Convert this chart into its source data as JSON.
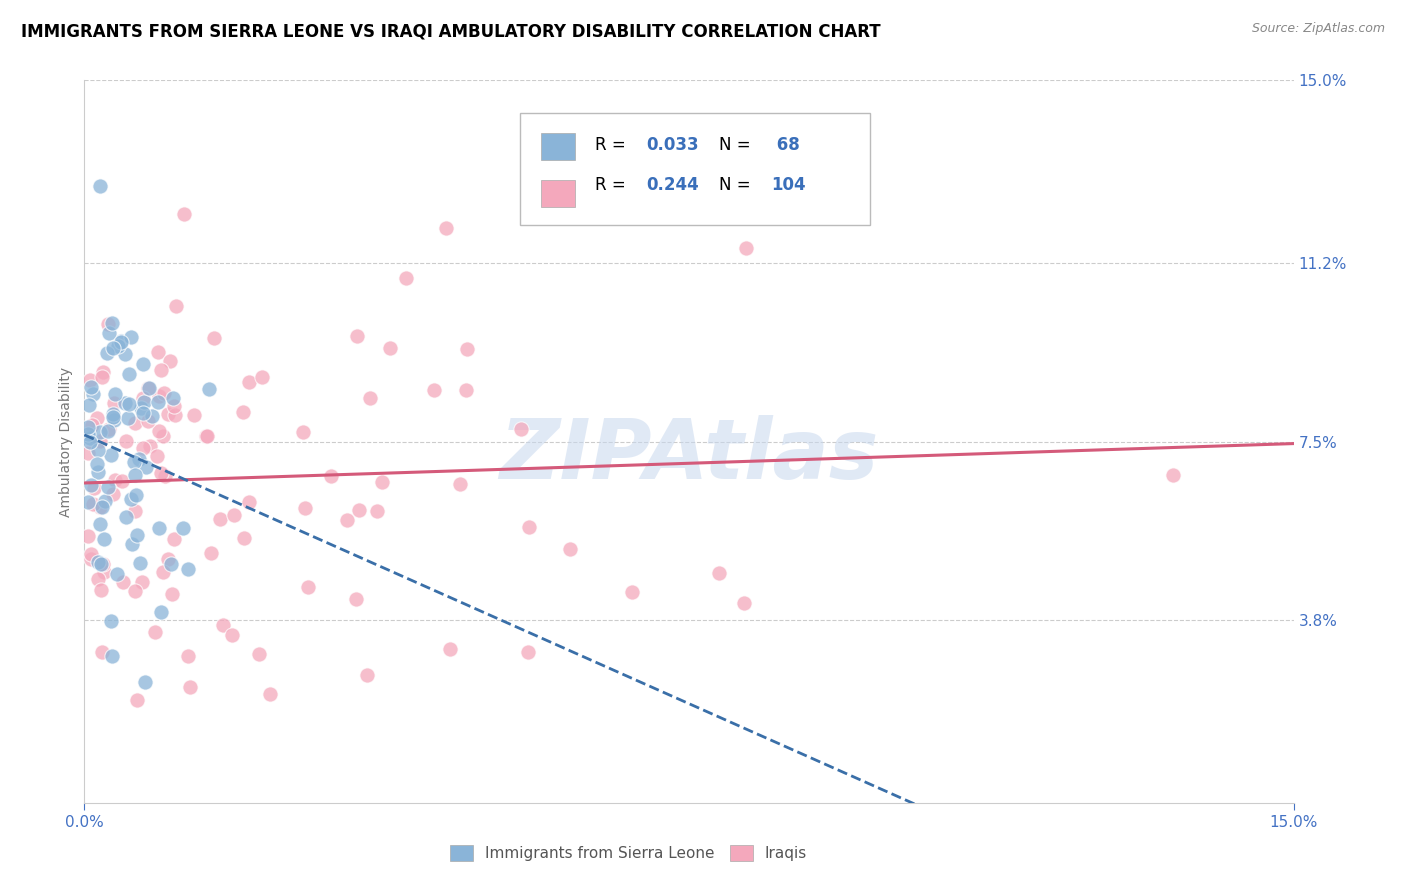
{
  "title": "IMMIGRANTS FROM SIERRA LEONE VS IRAQI AMBULATORY DISABILITY CORRELATION CHART",
  "source": "Source: ZipAtlas.com",
  "ylabel": "Ambulatory Disability",
  "xlim": [
    0.0,
    0.15
  ],
  "ylim": [
    0.0,
    0.15
  ],
  "xtick_positions": [
    0.0,
    0.15
  ],
  "xtick_labels": [
    "0.0%",
    "15.0%"
  ],
  "ytick_positions": [
    0.038,
    0.075,
    0.112,
    0.15
  ],
  "ytick_labels": [
    "3.8%",
    "7.5%",
    "11.2%",
    "15.0%"
  ],
  "watermark": "ZIPAtlas",
  "legend_r1": "R = 0.033",
  "legend_n1": "N =  68",
  "legend_r2": "R = 0.244",
  "legend_n2": "N = 104",
  "color_blue": "#8ab4d8",
  "color_pink": "#f4a8bc",
  "color_blue_dark": "#3a6fa8",
  "color_pink_dark": "#d45a7a",
  "color_value": "#3a6fba",
  "color_axis_label": "#777777",
  "color_grid": "#cccccc",
  "color_tick": "#4472c4",
  "title_fontsize": 12,
  "source_fontsize": 9,
  "tick_fontsize": 11,
  "n_sl": 68,
  "n_iq": 104,
  "seed": 99
}
